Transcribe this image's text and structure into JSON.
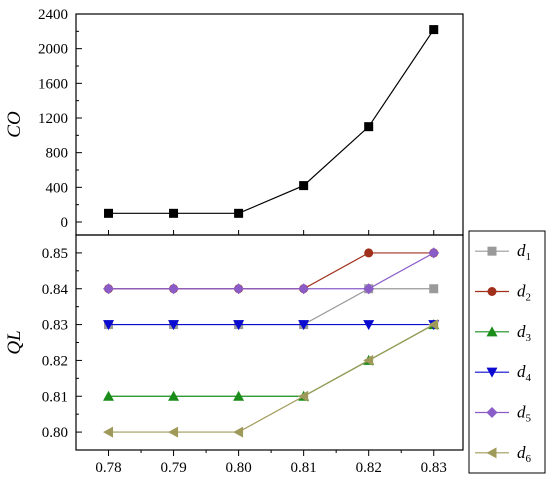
{
  "chart_data": [
    {
      "type": "line",
      "ylabel": "CO",
      "xlabel": "",
      "x": [
        0.78,
        0.79,
        0.8,
        0.81,
        0.82,
        0.83
      ],
      "x_tick_labels": [
        "0.78",
        "0.79",
        "0.80",
        "0.81",
        "0.82",
        "0.83"
      ],
      "ylim": [
        -150,
        2400
      ],
      "y_ticks": [
        0,
        400,
        800,
        1200,
        1600,
        2000,
        2400
      ],
      "y_tick_labels": [
        "0",
        "400",
        "800",
        "1200",
        "1600",
        "2000",
        "2400"
      ],
      "grid": false,
      "series": [
        {
          "values": [
            100,
            100,
            100,
            420,
            1100,
            2220
          ],
          "color": "#000000",
          "marker": "square"
        }
      ]
    },
    {
      "type": "line",
      "ylabel": "QL",
      "xlabel": "",
      "x": [
        0.78,
        0.79,
        0.8,
        0.81,
        0.82,
        0.83
      ],
      "x_tick_labels": [
        "0.78",
        "0.79",
        "0.80",
        "0.81",
        "0.82",
        "0.83"
      ],
      "ylim": [
        0.795,
        0.855
      ],
      "y_ticks": [
        0.8,
        0.81,
        0.82,
        0.83,
        0.84,
        0.85
      ],
      "y_tick_labels": [
        "0.80",
        "0.81",
        "0.82",
        "0.83",
        "0.84",
        "0.85"
      ],
      "grid": false,
      "legend_position": "right",
      "series": [
        {
          "name": "d1",
          "base": "d",
          "sub": "1",
          "values": [
            0.83,
            0.83,
            0.83,
            0.83,
            0.84,
            0.84
          ],
          "color": "#9a9a9a",
          "marker": "square"
        },
        {
          "name": "d2",
          "base": "d",
          "sub": "2",
          "values": [
            0.84,
            0.84,
            0.84,
            0.84,
            0.85,
            0.85
          ],
          "color": "#a0301c",
          "marker": "circle"
        },
        {
          "name": "d3",
          "base": "d",
          "sub": "3",
          "values": [
            0.81,
            0.81,
            0.81,
            0.81,
            0.82,
            0.83
          ],
          "color": "#1a8c1a",
          "marker": "triangle-up"
        },
        {
          "name": "d4",
          "base": "d",
          "sub": "4",
          "values": [
            0.83,
            0.83,
            0.83,
            0.83,
            0.83,
            0.83
          ],
          "color": "#0a0ad0",
          "marker": "triangle-down"
        },
        {
          "name": "d5",
          "base": "d",
          "sub": "5",
          "values": [
            0.84,
            0.84,
            0.84,
            0.84,
            0.84,
            0.85
          ],
          "color": "#8a5cc8",
          "marker": "diamond"
        },
        {
          "name": "d6",
          "base": "d",
          "sub": "6",
          "values": [
            0.8,
            0.8,
            0.8,
            0.81,
            0.82,
            0.83
          ],
          "color": "#a09a5a",
          "marker": "triangle-left"
        }
      ]
    }
  ]
}
